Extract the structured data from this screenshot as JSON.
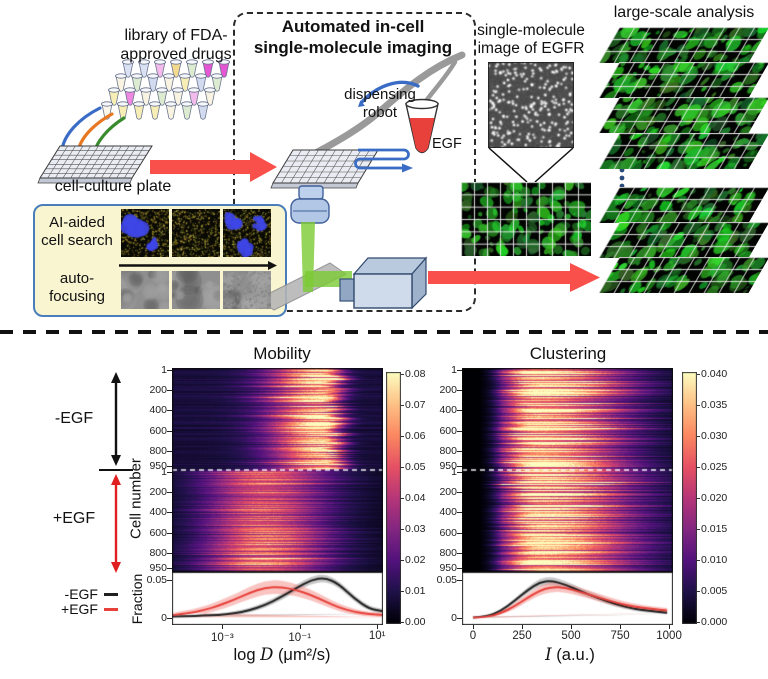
{
  "diagram": {
    "library_label": [
      "library of FDA-",
      "approved drugs"
    ],
    "plate_label": "cell-culture plate",
    "box_title": [
      "Automated in-cell",
      "single-molecule imaging"
    ],
    "robot_label": [
      "dispensing",
      "robot"
    ],
    "egf_label": "EGF",
    "ai_panel": {
      "search_label": [
        "AI-aided",
        "cell search"
      ],
      "focus_label": [
        "auto-",
        "focusing"
      ]
    },
    "sm_label": [
      "single-molecule",
      "image of EGFR"
    ],
    "analysis_label": "large-scale analysis",
    "colors": {
      "arrow_red": "#f9504b",
      "arrow_blue": "#3a6cc6",
      "arrow_orange": "#e87722",
      "arrow_green": "#3a8a2e",
      "beam_green": "#7ccb33",
      "panel_bg": "#f8f5d0",
      "panel_border": "#4a7ebb",
      "robot_gray": "#9a9a9a"
    }
  },
  "charts": {
    "cell_number_label": "Cell number",
    "fraction_label": "Fraction",
    "group_minus": "-EGF",
    "group_plus": "+EGF",
    "legend": [
      {
        "label": "-EGF",
        "color": "#1f1f1f"
      },
      {
        "label": "+EGF",
        "color": "#e8403a"
      }
    ]
  },
  "chart_data": [
    {
      "id": "mobility",
      "type": "heatmap",
      "title": "Mobility",
      "xlabel": {
        "pre": "log",
        "var": "D",
        "post": "(μm²/s)"
      },
      "x_domain": [
        -4.3,
        1.15
      ],
      "x_ticks": [
        {
          "v": -3,
          "label": "10⁻³"
        },
        {
          "v": -1,
          "label": "10⁻¹"
        },
        {
          "v": 1,
          "label": "10¹"
        }
      ],
      "y_ticks": [
        "1",
        "200",
        "400",
        "600",
        "800",
        "950"
      ],
      "vmax": 0.08,
      "colormap": "magma",
      "colorbar_ticks": [
        "0.08",
        "0.07",
        "0.06",
        "0.05",
        "0.04",
        "0.03",
        "0.02",
        "0.01",
        "0.00"
      ],
      "groups": [
        {
          "label": "-EGF",
          "rows": 950,
          "center": -0.35,
          "sigma_l": 0.95,
          "sigma_r": 0.32,
          "amp": 0.062,
          "base": 0.008,
          "jitter": 0.45
        },
        {
          "label": "+EGF",
          "rows": 950,
          "center": -1.95,
          "sigma_l": 1.05,
          "sigma_r": 1.2,
          "amp": 0.047,
          "base": 0.004,
          "jitter": 0.35
        }
      ],
      "fraction": {
        "ylim": [
          0,
          0.0605
        ],
        "y_ticks": [
          {
            "v": 0.05,
            "label": "0.05"
          },
          {
            "v": 0,
            "label": "0"
          }
        ],
        "x": [
          -4.3,
          -3.9,
          -3.5,
          -3.1,
          -2.7,
          -2.3,
          -1.9,
          -1.5,
          -1.1,
          -0.7,
          -0.35,
          0,
          0.4,
          0.8,
          1.15
        ],
        "series": [
          {
            "name": "-EGF",
            "color": "#1f1f1f",
            "band": "rgba(150,150,150,0.5)",
            "y": [
              0.002,
              0.0025,
              0.003,
              0.004,
              0.006,
              0.01,
              0.017,
              0.027,
              0.039,
              0.05,
              0.053,
              0.045,
              0.026,
              0.012,
              0.009
            ],
            "e": [
              0.0015,
              0.0015,
              0.002,
              0.002,
              0.0025,
              0.003,
              0.0035,
              0.004,
              0.0045,
              0.005,
              0.005,
              0.0045,
              0.004,
              0.0035,
              0.003
            ]
          },
          {
            "name": "+EGF",
            "color": "#e8403a",
            "band": "rgba(244,140,133,0.5)",
            "y": [
              0.004,
              0.006,
              0.01,
              0.016,
              0.024,
              0.033,
              0.04,
              0.041,
              0.037,
              0.03,
              0.022,
              0.014,
              0.008,
              0.005,
              0.004
            ],
            "e": [
              0.003,
              0.004,
              0.005,
              0.006,
              0.007,
              0.008,
              0.009,
              0.009,
              0.008,
              0.007,
              0.006,
              0.005,
              0.004,
              0.003,
              0.003
            ]
          }
        ]
      }
    },
    {
      "id": "clustering",
      "type": "heatmap",
      "title": "Clustering",
      "xlabel": {
        "pre": "",
        "var": "I",
        "post": "(a.u.)"
      },
      "x_domain": [
        -56,
        1020
      ],
      "x_ticks": [
        {
          "v": 0,
          "label": "0"
        },
        {
          "v": 250,
          "label": "250"
        },
        {
          "v": 500,
          "label": "500"
        },
        {
          "v": 750,
          "label": "750"
        },
        {
          "v": 1000,
          "label": "1000"
        }
      ],
      "y_ticks": [
        "1",
        "200",
        "400",
        "600",
        "800",
        "950"
      ],
      "vmax": 0.04,
      "colormap": "magma",
      "colorbar_ticks": [
        "0.040",
        "0.035",
        "0.030",
        "0.025",
        "0.020",
        "0.015",
        "0.010",
        "0.005",
        "0.000"
      ],
      "cut": [
        30,
        150
      ],
      "groups": [
        {
          "label": "-EGF",
          "rows": 950,
          "center": 320,
          "sigma_l": 120,
          "sigma_r": 310,
          "amp": 0.036,
          "base": 0.0015,
          "jitter": 0.5
        },
        {
          "label": "+EGF",
          "rows": 950,
          "center": 330,
          "sigma_l": 125,
          "sigma_r": 330,
          "amp": 0.034,
          "base": 0.0015,
          "jitter": 0.45
        }
      ],
      "fraction": {
        "ylim": [
          0,
          0.0605
        ],
        "y_ticks": [
          {
            "v": 0.05,
            "label": "0.05"
          },
          {
            "v": 0,
            "label": "0"
          }
        ],
        "x": [
          0,
          70,
          140,
          210,
          280,
          340,
          400,
          470,
          550,
          640,
          730,
          820,
          910,
          990
        ],
        "series": [
          {
            "name": "-EGF",
            "color": "#1f1f1f",
            "band": "rgba(150,150,150,0.5)",
            "y": [
              0.0005,
              0.002,
              0.009,
              0.022,
              0.037,
              0.047,
              0.049,
              0.044,
              0.035,
              0.026,
              0.018,
              0.012,
              0.009,
              0.007
            ],
            "e": [
              0.001,
              0.001,
              0.002,
              0.003,
              0.004,
              0.005,
              0.0055,
              0.005,
              0.0045,
              0.004,
              0.0035,
              0.003,
              0.0025,
              0.002
            ]
          },
          {
            "name": "+EGF",
            "color": "#e8403a",
            "band": "rgba(244,140,133,0.5)",
            "y": [
              0.0005,
              0.001,
              0.006,
              0.015,
              0.027,
              0.036,
              0.041,
              0.04,
              0.034,
              0.027,
              0.02,
              0.015,
              0.012,
              0.01
            ],
            "e": [
              0.001,
              0.001,
              0.002,
              0.004,
              0.005,
              0.006,
              0.0065,
              0.006,
              0.0055,
              0.005,
              0.0045,
              0.004,
              0.0035,
              0.003
            ]
          }
        ]
      }
    }
  ]
}
